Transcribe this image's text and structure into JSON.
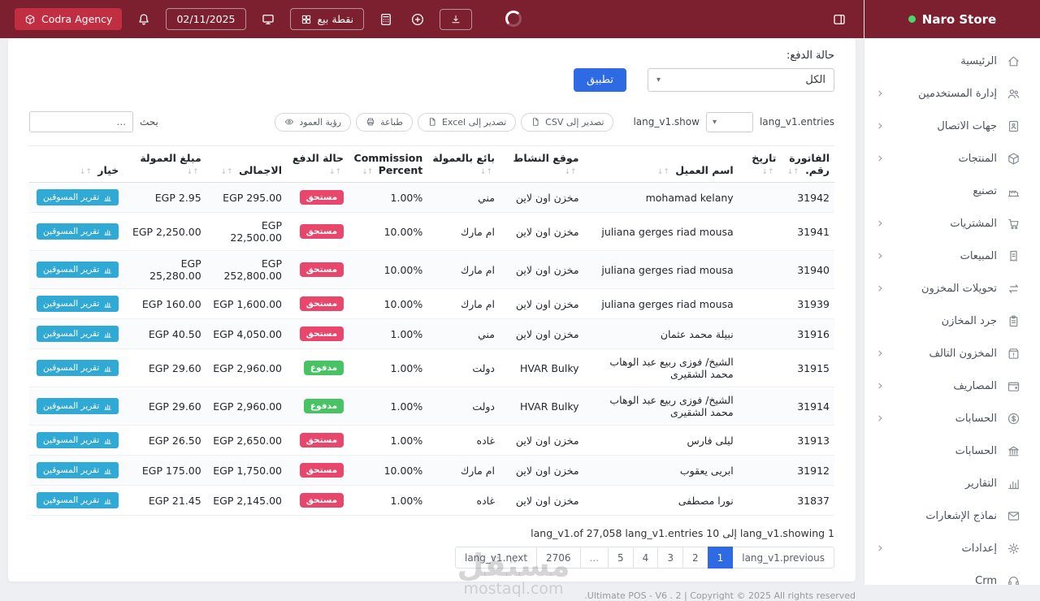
{
  "brand": {
    "name": "Naro Store",
    "status_dot_color": "#4ad66d"
  },
  "topbar": {
    "agency_label": "Codra Agency",
    "agency_icon": "cube-icon",
    "bell_icon": "bell-icon",
    "date": "02/11/2025",
    "pos_screen_icon": "pos-screen-icon",
    "pos_label": "نقطة بيع",
    "pos_icon": "grid-icon",
    "calculator_icon": "calculator-icon",
    "add_icon": "plus-circle-icon",
    "download_icon": "download-icon",
    "panel_toggle_icon": "panel-toggle-icon"
  },
  "sidebar": {
    "items": [
      {
        "label": "الرئيسية",
        "icon": "home-icon",
        "chevron": false
      },
      {
        "label": "إدارة المستخدمين",
        "icon": "users-icon",
        "chevron": true
      },
      {
        "label": "جهات الاتصال",
        "icon": "contacts-icon",
        "chevron": true
      },
      {
        "label": "المنتجات",
        "icon": "products-icon",
        "chevron": true
      },
      {
        "label": "تصنيع",
        "icon": "manufacturing-icon",
        "chevron": false
      },
      {
        "label": "المشتريات",
        "icon": "purchases-icon",
        "chevron": true
      },
      {
        "label": "المبيعات",
        "icon": "sales-icon",
        "chevron": true
      },
      {
        "label": "تحويلات المخزون",
        "icon": "transfers-icon",
        "chevron": true
      },
      {
        "label": "جرد المخازن",
        "icon": "stocktake-icon",
        "chevron": false
      },
      {
        "label": "المخزون التالف",
        "icon": "damaged-stock-icon",
        "chevron": true
      },
      {
        "label": "المصاريف",
        "icon": "expenses-icon",
        "chevron": true
      },
      {
        "label": "الحسابات",
        "icon": "accounts-icon",
        "chevron": true
      },
      {
        "label": "الحسابات",
        "icon": "bank-icon",
        "chevron": false
      },
      {
        "label": "التقارير",
        "icon": "reports-icon",
        "chevron": false
      },
      {
        "label": "نماذج الإشعارات",
        "icon": "notifications-icon",
        "chevron": false
      },
      {
        "label": "إعدادات",
        "icon": "settings-icon",
        "chevron": true
      },
      {
        "label": "Crm",
        "icon": "crm-icon",
        "chevron": false
      }
    ]
  },
  "filters": {
    "payment_status_label": "حالة الدفع:",
    "payment_status_value": "الكل",
    "apply_label": "تطبيق"
  },
  "table_controls": {
    "entries_label": "lang_v1.entries",
    "show_label": "lang_v1.show",
    "export_buttons": [
      {
        "label": "تصدير إلى CSV",
        "icon": "file-icon",
        "name": "export-csv-button"
      },
      {
        "label": "تصدير إلى Excel",
        "icon": "file-icon",
        "name": "export-excel-button"
      },
      {
        "label": "طباعة",
        "icon": "printer-icon",
        "name": "print-button"
      },
      {
        "label": "رؤية العمود",
        "icon": "eye-icon",
        "name": "column-visibility-button"
      }
    ],
    "search_label": "بحث",
    "search_placeholder": "..."
  },
  "table": {
    "columns": [
      "الفاتورة رقم.",
      "تاريخ",
      "اسم العميل",
      "موقع النشاط",
      "بائع بالعمولة",
      "Commission Percent",
      "حالة الدفع",
      "الاجمالى",
      "مبلغ العمولة",
      "خيار"
    ],
    "action_label": "تقرير المسوقين",
    "action_icon": "report-icon",
    "rows": [
      {
        "invoice": "31942",
        "date": "",
        "customer": "mohamad kelany",
        "location": "مخزن اون لاين",
        "agent": "مني",
        "percent": "1.00%",
        "status": "مستحق",
        "status_type": "due",
        "total": "EGP 295.00",
        "commission": "EGP 2.95"
      },
      {
        "invoice": "31941",
        "date": "",
        "customer": "juliana gerges riad mousa",
        "location": "مخزن اون لاين",
        "agent": "ام مارك",
        "percent": "10.00%",
        "status": "مستحق",
        "status_type": "due",
        "total": "EGP 22,500.00",
        "commission": "EGP 2,250.00"
      },
      {
        "invoice": "31940",
        "date": "",
        "customer": "juliana gerges riad mousa",
        "location": "مخزن اون لاين",
        "agent": "ام مارك",
        "percent": "10.00%",
        "status": "مستحق",
        "status_type": "due",
        "total": "EGP 252,800.00",
        "commission": "EGP 25,280.00"
      },
      {
        "invoice": "31939",
        "date": "",
        "customer": "juliana gerges riad mousa",
        "location": "مخزن اون لاين",
        "agent": "ام مارك",
        "percent": "10.00%",
        "status": "مستحق",
        "status_type": "due",
        "total": "EGP 1,600.00",
        "commission": "EGP 160.00"
      },
      {
        "invoice": "31916",
        "date": "",
        "customer": "نبيلة محمد عثمان",
        "location": "مخزن اون لاين",
        "agent": "مني",
        "percent": "1.00%",
        "status": "مستحق",
        "status_type": "due",
        "total": "EGP 4,050.00",
        "commission": "EGP 40.50"
      },
      {
        "invoice": "31915",
        "date": "",
        "customer": "الشيخ/ فوزى ربيع عبد الوهاب محمد الشقيرى",
        "location": "HVAR Bulky",
        "agent": "دولت",
        "percent": "1.00%",
        "status": "مدفوع",
        "status_type": "paid",
        "total": "EGP 2,960.00",
        "commission": "EGP 29.60"
      },
      {
        "invoice": "31914",
        "date": "",
        "customer": "الشيخ/ فوزى ربيع عبد الوهاب محمد الشقيرى",
        "location": "HVAR Bulky",
        "agent": "دولت",
        "percent": "1.00%",
        "status": "مدفوع",
        "status_type": "paid",
        "total": "EGP 2,960.00",
        "commission": "EGP 29.60"
      },
      {
        "invoice": "31913",
        "date": "",
        "customer": "ليلى فارس",
        "location": "مخزن اون لاين",
        "agent": "غاده",
        "percent": "1.00%",
        "status": "مستحق",
        "status_type": "due",
        "total": "EGP 2,650.00",
        "commission": "EGP 26.50"
      },
      {
        "invoice": "31912",
        "date": "",
        "customer": "ابريى يعقوب",
        "location": "مخزن اون لاين",
        "agent": "ام مارك",
        "percent": "10.00%",
        "status": "مستحق",
        "status_type": "due",
        "total": "EGP 1,750.00",
        "commission": "EGP 175.00"
      },
      {
        "invoice": "31837",
        "date": "",
        "customer": "نورا مصطفى",
        "location": "مخزن اون لاين",
        "agent": "غاده",
        "percent": "1.00%",
        "status": "مستحق",
        "status_type": "due",
        "total": "EGP 2,145.00",
        "commission": "EGP 21.45"
      }
    ]
  },
  "pagination": {
    "summary": "lang_v1.of 27,058 lang_v1.entries 10 إلى lang_v1.showing 1",
    "previous": "lang_v1.previous",
    "next": "lang_v1.next",
    "pages": [
      "1",
      "2",
      "3",
      "4",
      "5",
      "...",
      "2706"
    ],
    "active_page": "1"
  },
  "footer": {
    "copyright": "Ultimate POS - V6 . 2 | Copyright © 2025 All rights reserved."
  },
  "watermark": {
    "title": "مستقل",
    "subtitle": "mostaql.com"
  },
  "colors": {
    "navbar_maroon": "#7c1f2f",
    "agency_red": "#c22e41",
    "accent_blue": "#2d6ae3",
    "badge_due": "#e8476b",
    "badge_paid": "#47c363",
    "action_teal": "#30aad4",
    "brand_dot_green": "#4ad66d"
  }
}
